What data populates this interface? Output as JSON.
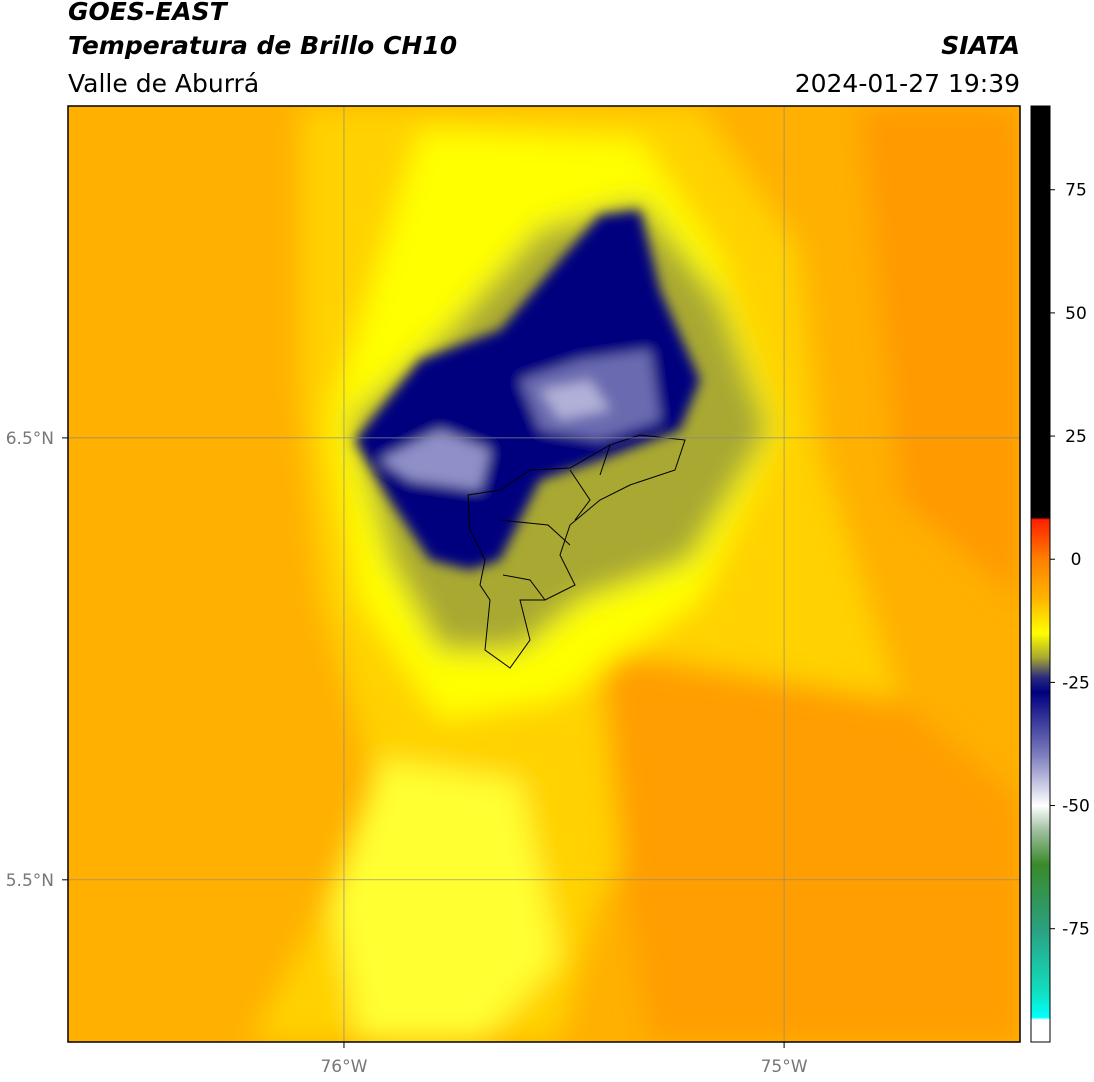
{
  "header": {
    "title": "GOES-EAST",
    "subtitle": "Temperatura de Brillo CH10",
    "region": "Valle de Aburrá",
    "source": "SIATA",
    "datetime": "2024-01-27 19:39"
  },
  "map": {
    "lon_range": [
      -76.627,
      -74.464
    ],
    "lat_range": [
      5.133,
      7.251
    ],
    "lon_ticks": [
      {
        "value": -76,
        "label": "76°W"
      },
      {
        "value": -75,
        "label": "75°W"
      }
    ],
    "lat_ticks": [
      {
        "value": 6.5,
        "label": "6.5°N"
      },
      {
        "value": 5.5,
        "label": "5.5°N"
      }
    ],
    "grid": true
  },
  "colorbar": {
    "lim": [
      -98,
      92
    ],
    "ticks": [
      75,
      50,
      25,
      0,
      -25,
      -50,
      -75
    ],
    "stops": [
      {
        "value": 92,
        "color": "#000000"
      },
      {
        "value": 8.5,
        "color": "#000000"
      },
      {
        "value": 8,
        "color": "#ff2000"
      },
      {
        "value": 0,
        "color": "#ff8000"
      },
      {
        "value": -8,
        "color": "#ffb400"
      },
      {
        "value": -15,
        "color": "#ffff00"
      },
      {
        "value": -20,
        "color": "#a8a830"
      },
      {
        "value": -24,
        "color": "#2a2a80"
      },
      {
        "value": -27,
        "color": "#00007f"
      },
      {
        "value": -40,
        "color": "#8080c0"
      },
      {
        "value": -50,
        "color": "#ffffff"
      },
      {
        "value": -55,
        "color": "#a0c0a0"
      },
      {
        "value": -62,
        "color": "#3a8a2a"
      },
      {
        "value": -75,
        "color": "#2aa080"
      },
      {
        "value": -88,
        "color": "#10e0c0"
      },
      {
        "value": -93,
        "color": "#00ffff"
      },
      {
        "value": -93.5,
        "color": "#ffffff"
      },
      {
        "value": -98,
        "color": "#ffffff"
      }
    ]
  }
}
